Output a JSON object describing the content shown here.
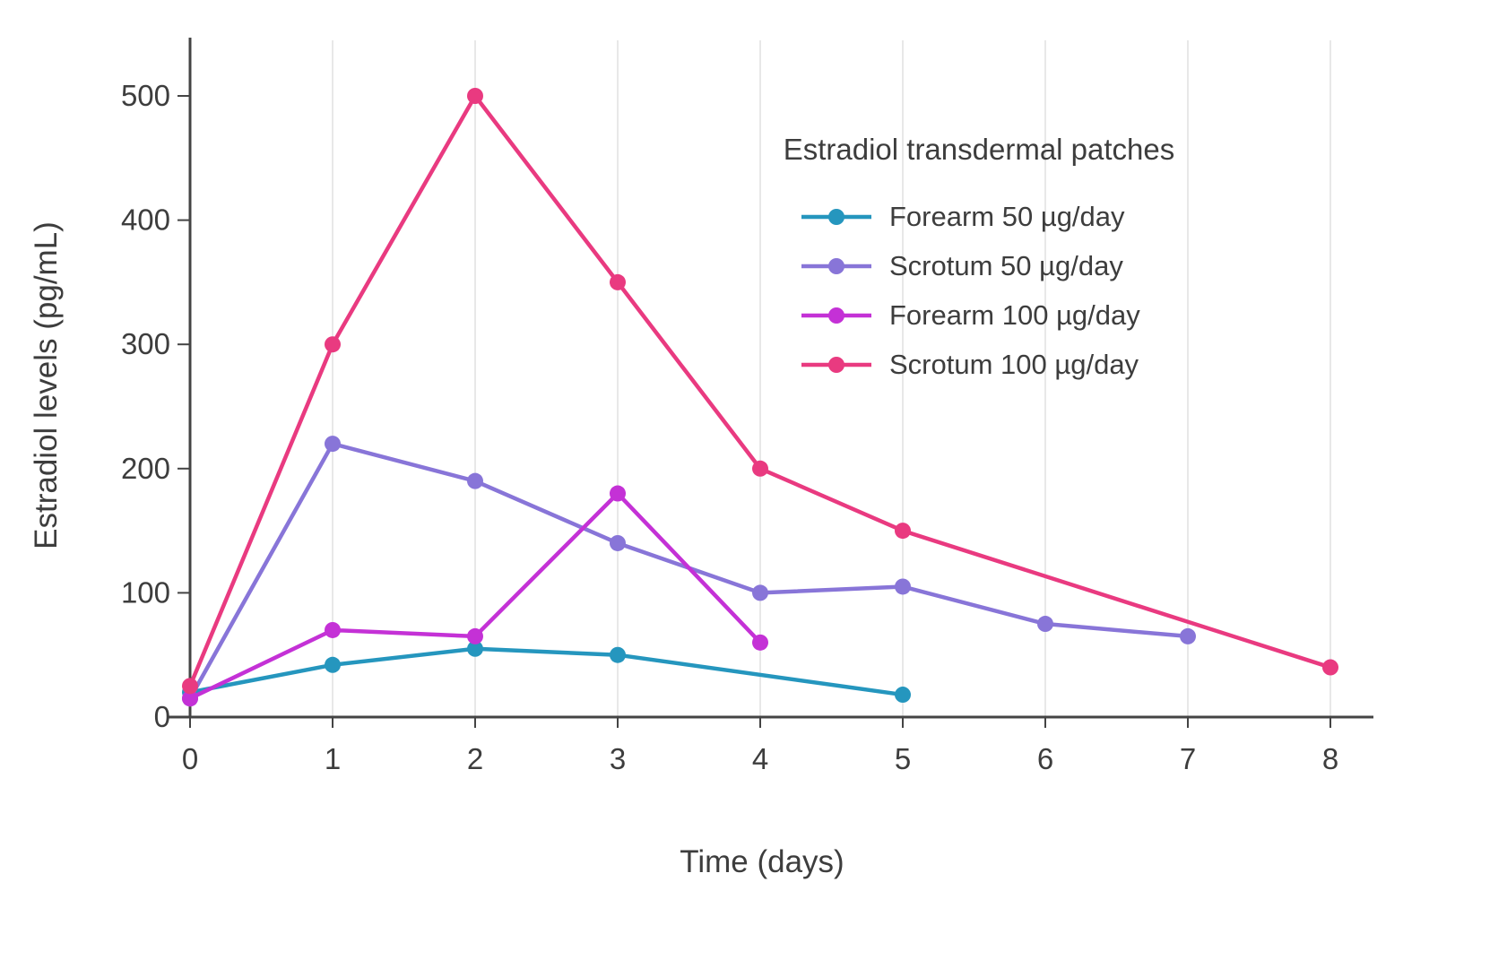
{
  "chart_data": {
    "type": "line",
    "title": "Estradiol transdermal patches",
    "xlabel": "Time (days)",
    "ylabel": "Estradiol levels (pg/mL)",
    "xlim": [
      0,
      8
    ],
    "ylim": [
      0,
      500
    ],
    "xticks": [
      0,
      1,
      2,
      3,
      4,
      5,
      6,
      7,
      8
    ],
    "yticks": [
      0,
      100,
      200,
      300,
      400,
      500
    ],
    "grid": "vertical-light-gridlines-only",
    "legend_position": "top-right-inside",
    "series": [
      {
        "name": "Forearm 50 µg/day",
        "color": "#2596be",
        "x": [
          0,
          1,
          2,
          3,
          5
        ],
        "y": [
          20,
          42,
          55,
          50,
          18
        ]
      },
      {
        "name": "Scrotum 50 µg/day",
        "color": "#8875d8",
        "x": [
          0,
          1,
          2,
          3,
          4,
          5,
          6,
          7
        ],
        "y": [
          15,
          220,
          190,
          140,
          100,
          105,
          75,
          65
        ]
      },
      {
        "name": "Forearm 100 µg/day",
        "color": "#c431d6",
        "x": [
          0,
          1,
          2,
          3,
          4
        ],
        "y": [
          15,
          70,
          65,
          180,
          60
        ]
      },
      {
        "name": "Scrotum 100 µg/day",
        "color": "#e93a80",
        "x": [
          0,
          1,
          2,
          3,
          4,
          5,
          8
        ],
        "y": [
          25,
          300,
          500,
          350,
          200,
          150,
          40
        ]
      }
    ]
  },
  "colors": {
    "background": "#ffffff",
    "axis": "#444444",
    "text": "#3d3d3d",
    "grid": "#e8e8e8"
  }
}
